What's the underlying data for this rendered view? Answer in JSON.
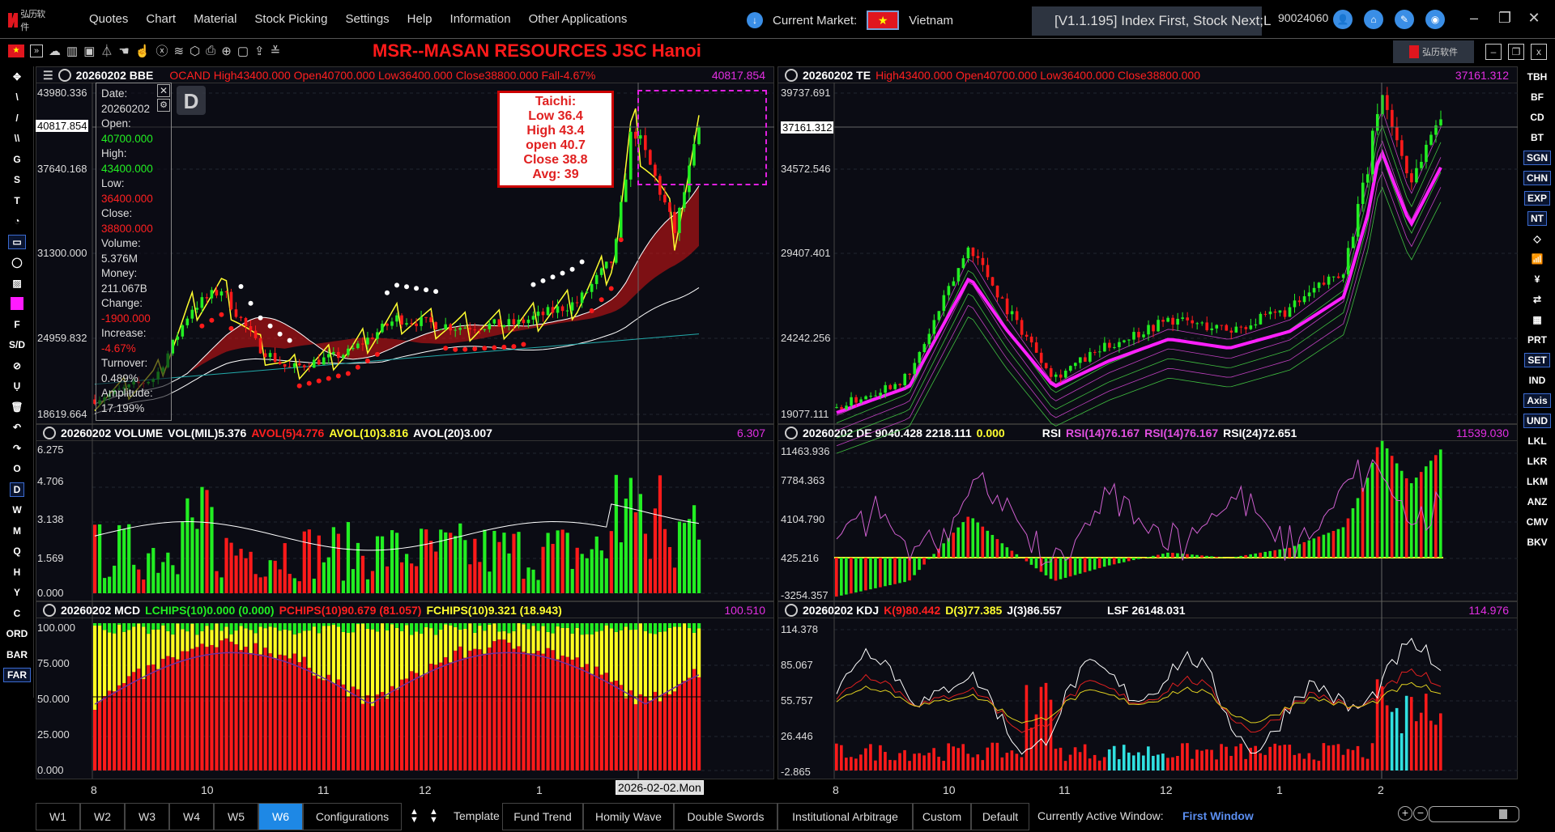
{
  "app": {
    "menu": [
      "Quotes",
      "Chart",
      "Material",
      "Stock Picking",
      "Settings",
      "Help",
      "Information",
      "Other Applications"
    ],
    "current_market_label": "Current Market:",
    "market": "Vietnam",
    "version_banner": "[V1.1.195] Index First, Stock Next;L",
    "account": "90024060"
  },
  "toolbar": {
    "stock_title": "MSR--MASAN RESOURCES JSC  Hanoi"
  },
  "left_tools": [
    "✥",
    "\\",
    "/",
    "\\\\",
    "G",
    "S",
    "T",
    "◔",
    "▭",
    "◯",
    "▨",
    "■",
    "F",
    "S/D",
    "⊘",
    "Ụ",
    "🗑",
    "↶",
    "↷",
    "O",
    "D",
    "W",
    "M",
    "Q",
    "H",
    "Y",
    "C",
    "ORD",
    "BAR",
    "FAR"
  ],
  "left_tools_selected": [
    8,
    20,
    29
  ],
  "right_tools": [
    "TBH",
    "BF",
    "CD",
    "BT",
    "SGN",
    "CHN",
    "EXP",
    "NT",
    "◇",
    "📶",
    "¥",
    "⇄",
    "▦",
    "PRT",
    "SET",
    "IND",
    "Axis",
    "UND",
    "LKL",
    "LKR",
    "LKM",
    "ANZ",
    "CMV",
    "BKV"
  ],
  "right_tools_selected": [
    4,
    5,
    6,
    7,
    14,
    16,
    17
  ],
  "main_left": {
    "date": "20260202 BBE",
    "ohlc": "OCAND High43400.000 Open40700.000 Low36400.000 Close38800.000 Fall-4.67%",
    "value": "40817.854",
    "axis": [
      "43980.336",
      "37640.168",
      "31300.000",
      "24959.832",
      "18619.664"
    ],
    "cursor": "40817.854",
    "period_badge": "D",
    "tooltip": {
      "date_l": "Date:",
      "date": "20260202",
      "open_l": "Open:",
      "open": "40700.000",
      "high_l": "High:",
      "high": "43400.000",
      "low_l": "Low:",
      "low": "36400.000",
      "close_l": "Close:",
      "close": "38800.000",
      "vol_l": "Volume:",
      "vol": "5.376M",
      "money_l": "Money:",
      "money": "211.067B",
      "chg_l": "Change:",
      "chg": "-1900.000",
      "inc_l": "Increase:",
      "inc": "-4.67%",
      "turn_l": "Turnover:",
      "turn": "0.489%",
      "amp_l": "Amplitude:",
      "amp": "17.199%"
    },
    "taichi": [
      "Taichi:",
      "Low 36.4",
      "High 43.4",
      "open 40.7",
      "Close 38.8",
      "Avg: 39"
    ]
  },
  "vol_left": {
    "date": "20260202 VOLUME",
    "vol": "VOL(MIL)5.376",
    "a5": "AVOL(5)4.776",
    "a10": "AVOL(10)3.816",
    "a20": "AVOL(20)3.007",
    "value": "6.307",
    "axis": [
      "6.275",
      "4.706",
      "3.138",
      "1.569",
      "0.000"
    ]
  },
  "mcd_left": {
    "date": "20260202 MCD",
    "l": "LCHIPS(10)0.000 (0.000)",
    "p": "PCHIPS(10)90.679 (81.057)",
    "f": "FCHIPS(10)9.321 (18.943)",
    "value": "100.510",
    "axis": [
      "100.000",
      "75.000",
      "50.000",
      "25.000",
      "0.000"
    ]
  },
  "main_right": {
    "date": "20260202 TE",
    "ohlc": "High43400.000 Open40700.000 Low36400.000 Close38800.000",
    "value": "37161.312",
    "axis": [
      "39737.691",
      "34572.546",
      "29407.401",
      "24242.256",
      "19077.111"
    ],
    "cursor": "37161.312"
  },
  "de_right": {
    "date": "20260202 DE 9040.428 2218.111",
    "z": "0.000",
    "rsi": "RSI",
    "r1": "RSI(14)76.167",
    "r2": "RSI(14)76.167",
    "r3": "RSI(24)72.651",
    "value": "11539.030",
    "axis": [
      "11463.936",
      "7784.363",
      "4104.790",
      "425.216",
      "-3254.357"
    ]
  },
  "kdj_right": {
    "date": "20260202 KDJ",
    "k": "K(9)80.442",
    "d": "D(3)77.385",
    "j": "J(3)86.557",
    "lsf": "LSF 26148.031",
    "value": "114.976",
    "axis": [
      "114.378",
      "85.067",
      "55.757",
      "26.446",
      "-2.865"
    ]
  },
  "x_left": [
    "8",
    "10",
    "11",
    "12",
    "1"
  ],
  "x_cursor": "2026-02-02.Mon",
  "x_right": [
    "8",
    "10",
    "11",
    "12",
    "1",
    "2"
  ],
  "bottom": {
    "windows": [
      "W1",
      "W2",
      "W3",
      "W4",
      "W5",
      "W6"
    ],
    "active_window": "W6",
    "configurations": "Configurations",
    "template": "Template",
    "templates": [
      "Fund Trend",
      "Homily Wave",
      "Double Swords",
      "Institutional Arbitrage",
      "Custom",
      "Default"
    ],
    "active_label": "Currently Active Window:",
    "active_value": "First Window"
  },
  "colors": {
    "up": "#22ee22",
    "down": "#ff1a1a",
    "accent": "#e22fe2",
    "active": "#1e88e5"
  }
}
